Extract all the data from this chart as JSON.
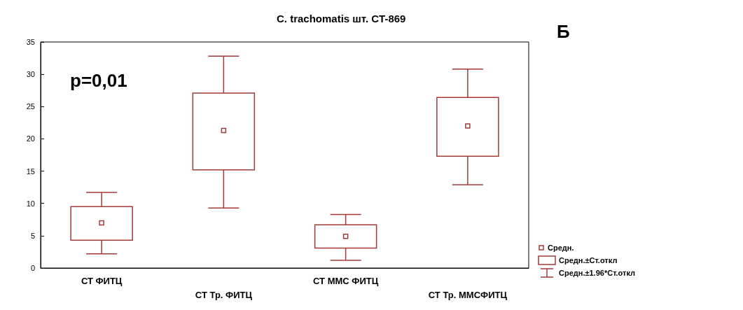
{
  "chart_data": {
    "type": "box",
    "title": "C. trachomatis шт. CT-869",
    "categories": [
      "СТ ФИТЦ",
      "СТ Тр. ФИТЦ",
      "СТ ММС ФИТЦ",
      "СТ Тр. ММСФИТЦ"
    ],
    "boxes": [
      {
        "low": 2.2,
        "q1": 4.3,
        "median": 7.0,
        "q3": 9.5,
        "high": 11.7
      },
      {
        "low": 9.3,
        "q1": 15.2,
        "median": 21.3,
        "q3": 27.1,
        "high": 32.8
      },
      {
        "low": 1.2,
        "q1": 3.1,
        "median": 4.9,
        "q3": 6.7,
        "high": 8.3
      },
      {
        "low": 12.9,
        "q1": 17.3,
        "median": 22.0,
        "q3": 26.4,
        "high": 30.8
      }
    ],
    "color": "#a33a3a",
    "ylim": [
      0,
      35
    ],
    "yticks": [
      0,
      5,
      10,
      15,
      20,
      25,
      30,
      35
    ],
    "grid": false,
    "annotations": [
      "p=0,01",
      "Б",
      "Средн.",
      "Средн.±Ст.откл",
      "Средн.±1.96*Ст.откл"
    ]
  }
}
